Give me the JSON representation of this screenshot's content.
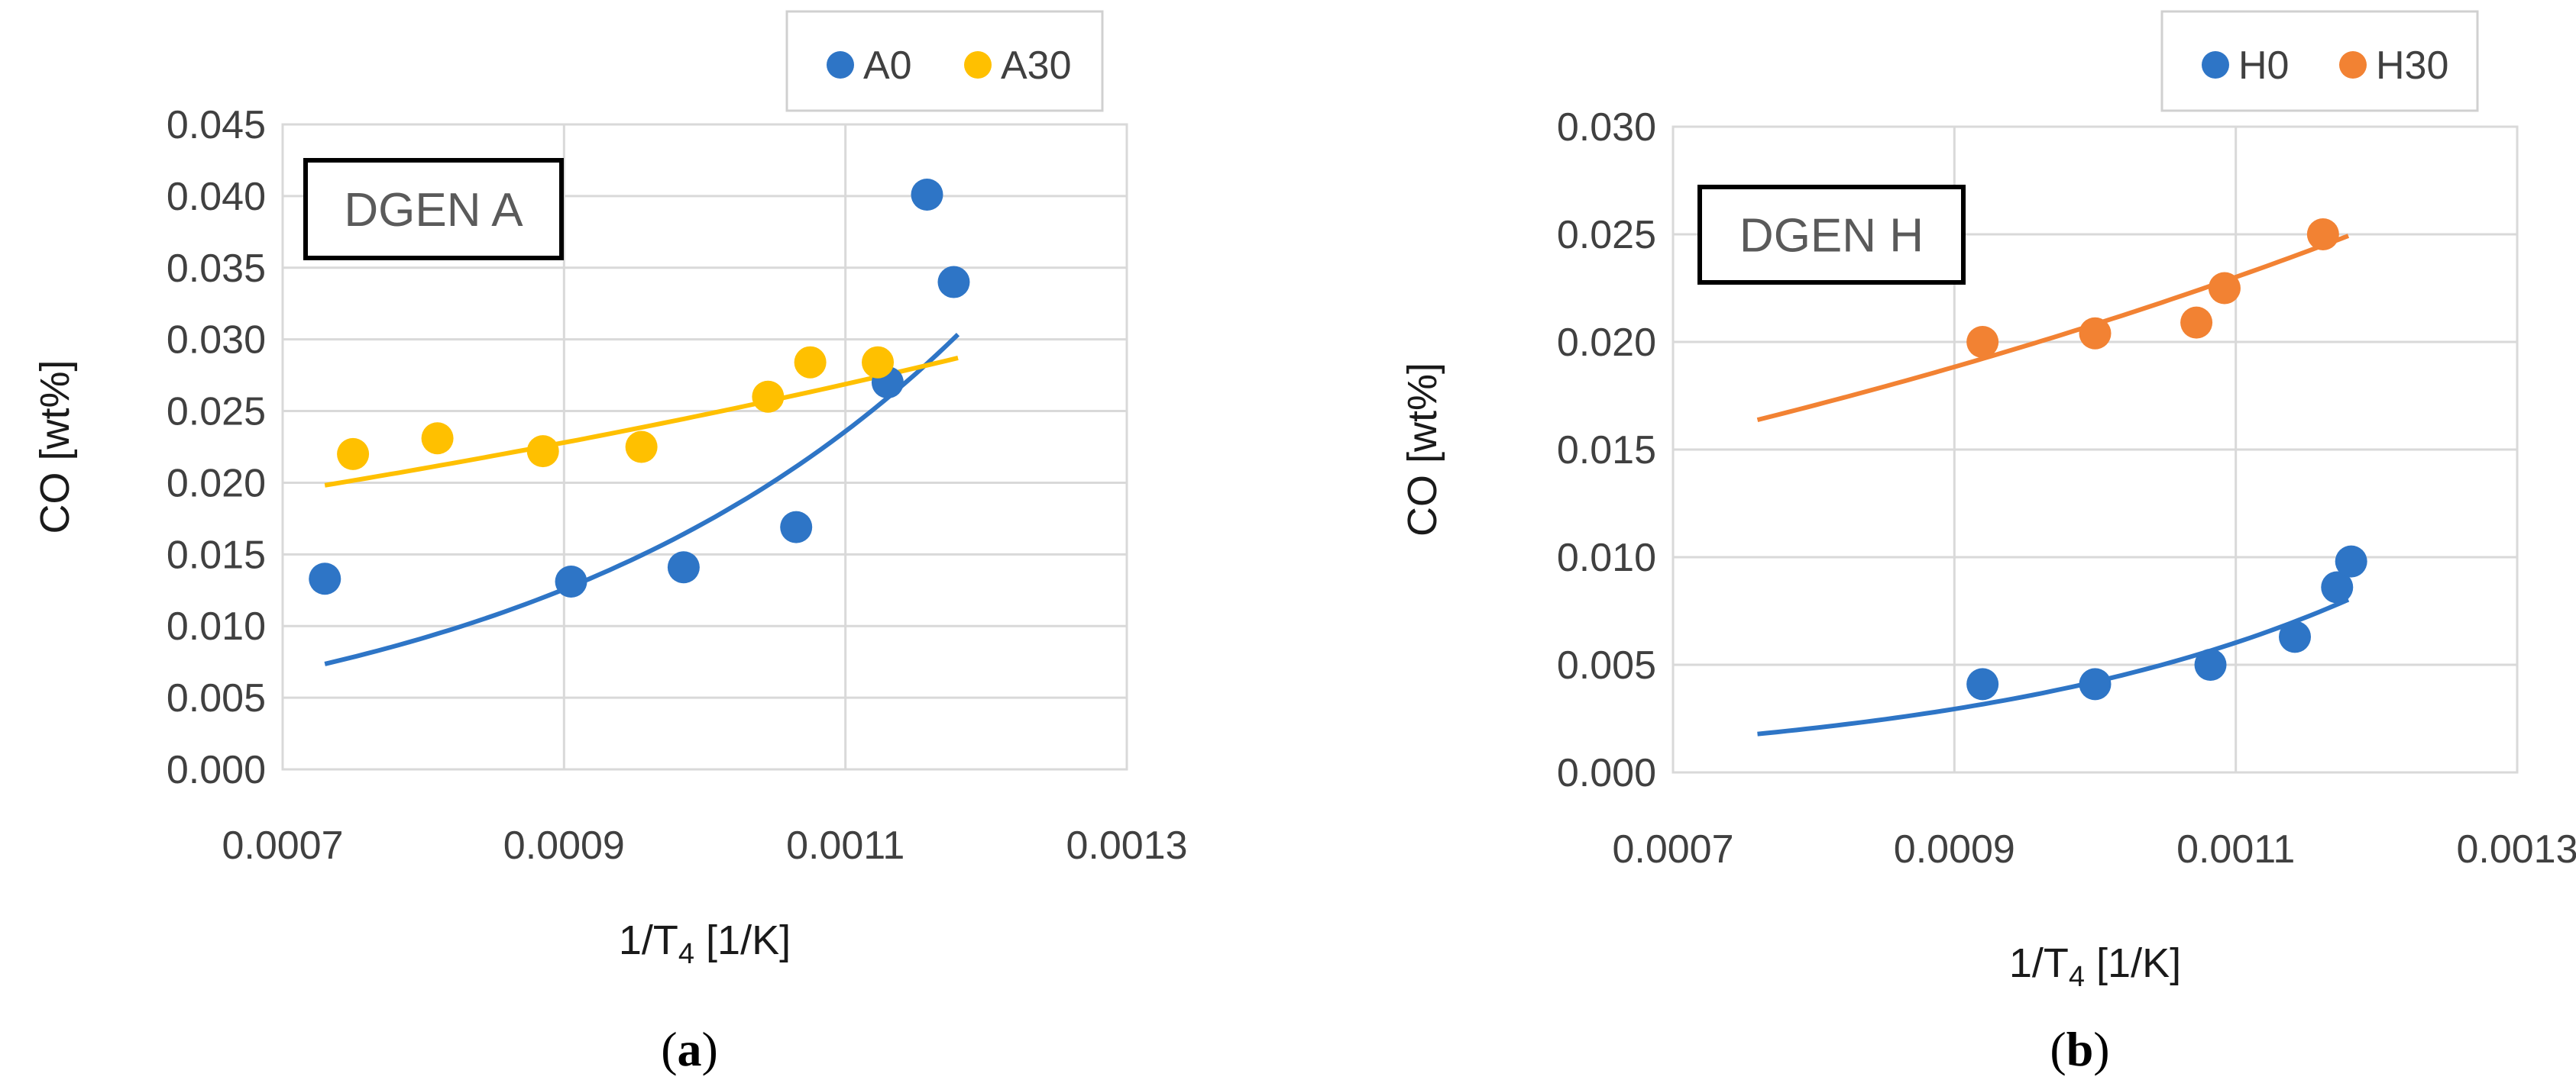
{
  "chart_data": [
    {
      "type": "scatter",
      "panel": "a",
      "caption_open": "(",
      "caption_letter": "a",
      "caption_close": ")",
      "inset_label": "DGEN A",
      "ylabel": "CO [wt%]",
      "xlabel_main": "1/T",
      "xlabel_sub": "4",
      "xlabel_unit": " [1/K]",
      "xlim": [
        0.0007,
        0.0013
      ],
      "ylim": [
        0,
        0.045
      ],
      "xticks": [
        0.0007,
        0.0009,
        0.0011,
        0.0013
      ],
      "xtick_labels": [
        "0.0007",
        "0.0009",
        "0.0011",
        "0.0013"
      ],
      "yticks": [
        0,
        0.005,
        0.01,
        0.015,
        0.02,
        0.025,
        0.03,
        0.035,
        0.04,
        0.045
      ],
      "ytick_labels": [
        "0.000",
        "0.005",
        "0.010",
        "0.015",
        "0.020",
        "0.025",
        "0.030",
        "0.035",
        "0.040",
        "0.045"
      ],
      "grid": true,
      "legend_position": "top-right outside",
      "series": [
        {
          "name": "A0",
          "color": "#2e75c6",
          "x": [
            0.00073,
            0.000905,
            0.000985,
            0.001065,
            0.00113,
            0.001158,
            0.001177
          ],
          "y": [
            0.0133,
            0.0131,
            0.0141,
            0.0169,
            0.027,
            0.0401,
            0.034
          ],
          "trend": {
            "type": "exponential",
            "a": 0.0007376,
            "b": 3150,
            "x_range": [
              0.00073,
              0.00118
            ]
          }
        },
        {
          "name": "A30",
          "color": "#ffc000",
          "x": [
            0.00075,
            0.00081,
            0.000885,
            0.000955,
            0.001045,
            0.001075,
            0.001123
          ],
          "y": [
            0.022,
            0.0231,
            0.0222,
            0.0225,
            0.026,
            0.0284,
            0.0284
          ],
          "trend": {
            "type": "exponential",
            "a": 0.01087,
            "b": 823,
            "x_range": [
              0.00073,
              0.00118
            ]
          }
        }
      ]
    },
    {
      "type": "scatter",
      "panel": "b",
      "caption_open": "(",
      "caption_letter": "b",
      "caption_close": ")",
      "inset_label": "DGEN H",
      "ylabel": "CO [wt%]",
      "xlabel_main": "1/T",
      "xlabel_sub": "4",
      "xlabel_unit": " [1/K]",
      "xlim": [
        0.0007,
        0.0013
      ],
      "ylim": [
        0,
        0.03
      ],
      "xticks": [
        0.0007,
        0.0009,
        0.0011,
        0.0013
      ],
      "xtick_labels": [
        "0.0007",
        "0.0009",
        "0.0011",
        "0.0013"
      ],
      "yticks": [
        0,
        0.005,
        0.01,
        0.015,
        0.02,
        0.025,
        0.03
      ],
      "ytick_labels": [
        "0.000",
        "0.005",
        "0.010",
        "0.015",
        "0.020",
        "0.025",
        "0.030"
      ],
      "grid": true,
      "legend_position": "top-right outside",
      "series": [
        {
          "name": "H0",
          "color": "#2e75c6",
          "x": [
            0.00092,
            0.001,
            0.001082,
            0.001142,
            0.001172,
            0.001182
          ],
          "y": [
            0.0041,
            0.0041,
            0.005,
            0.0063,
            0.0086,
            0.0098
          ],
          "trend": {
            "type": "exponential",
            "a": 0.0001175,
            "b": 3580,
            "x_range": [
              0.00076,
              0.00118
            ]
          }
        },
        {
          "name": "H30",
          "color": "#f28233",
          "x": [
            0.00092,
            0.001,
            0.001072,
            0.001092,
            0.001162
          ],
          "y": [
            0.02,
            0.0204,
            0.0209,
            0.0225,
            0.025
          ],
          "trend": {
            "type": "exponential",
            "a": 0.00766,
            "b": 1000,
            "x_range": [
              0.00076,
              0.00118
            ]
          }
        }
      ]
    }
  ]
}
